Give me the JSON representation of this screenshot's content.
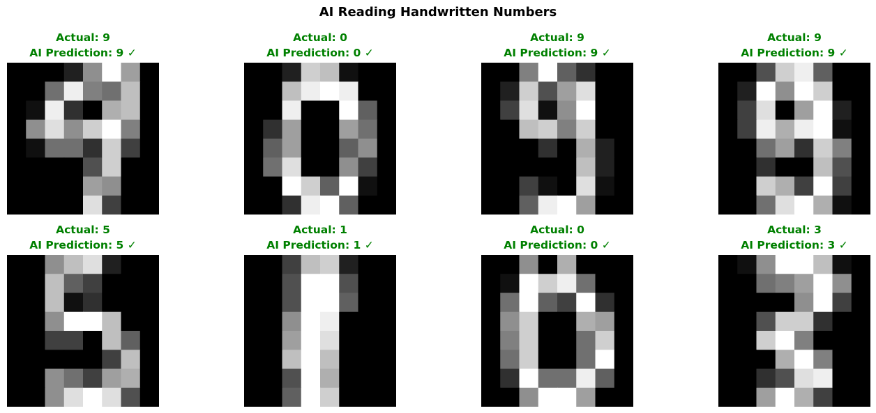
{
  "figure": {
    "title": "AI Reading Handwritten Numbers",
    "correct_color": "#008000"
  },
  "chart_data": {
    "type": "heatmap",
    "title": "AI Reading Handwritten Numbers",
    "colormap": "gray",
    "value_range": [
      0,
      16
    ],
    "grid_size": [
      8,
      8
    ],
    "axes_visible": false,
    "panels": [
      {
        "actual_label": "Actual: 9",
        "prediction_label": "AI Prediction: 9 ✓",
        "actual": 9,
        "predicted": 9,
        "correct": true,
        "pixels": [
          [
            0,
            0,
            0,
            2,
            9,
            16,
            10,
            0
          ],
          [
            0,
            0,
            7,
            15,
            8,
            7,
            12,
            0
          ],
          [
            0,
            1,
            15,
            3,
            0,
            11,
            12,
            0
          ],
          [
            0,
            9,
            14,
            9,
            13,
            16,
            8,
            0
          ],
          [
            0,
            1,
            7,
            7,
            3,
            13,
            4,
            0
          ],
          [
            0,
            0,
            0,
            0,
            5,
            13,
            0,
            0
          ],
          [
            0,
            0,
            0,
            0,
            10,
            9,
            0,
            0
          ],
          [
            0,
            0,
            0,
            0,
            14,
            4,
            0,
            0
          ]
        ]
      },
      {
        "actual_label": "Actual: 0",
        "prediction_label": "AI Prediction: 0 ✓",
        "actual": 0,
        "predicted": 0,
        "correct": true,
        "pixels": [
          [
            0,
            0,
            2,
            13,
            12,
            1,
            0,
            0
          ],
          [
            0,
            0,
            12,
            15,
            16,
            15,
            0,
            0
          ],
          [
            0,
            0,
            15,
            0,
            0,
            16,
            6,
            0
          ],
          [
            0,
            3,
            10,
            0,
            0,
            10,
            7,
            0
          ],
          [
            0,
            6,
            10,
            0,
            0,
            6,
            9,
            0
          ],
          [
            0,
            7,
            14,
            0,
            0,
            9,
            4,
            0
          ],
          [
            0,
            0,
            16,
            13,
            6,
            16,
            1,
            0
          ],
          [
            0,
            0,
            3,
            15,
            16,
            6,
            0,
            0
          ]
        ]
      },
      {
        "actual_label": "Actual: 9",
        "prediction_label": "AI Prediction: 9 ✓",
        "actual": 9,
        "predicted": 9,
        "correct": true,
        "pixels": [
          [
            0,
            0,
            8,
            16,
            6,
            3,
            0,
            0
          ],
          [
            0,
            2,
            13,
            5,
            10,
            14,
            0,
            0
          ],
          [
            0,
            4,
            14,
            1,
            9,
            16,
            0,
            0
          ],
          [
            0,
            0,
            12,
            13,
            8,
            13,
            0,
            0
          ],
          [
            0,
            0,
            0,
            3,
            0,
            11,
            2,
            0
          ],
          [
            0,
            0,
            0,
            0,
            0,
            12,
            2,
            0
          ],
          [
            0,
            0,
            4,
            1,
            0,
            14,
            1,
            0
          ],
          [
            0,
            0,
            6,
            15,
            16,
            10,
            0,
            0
          ]
        ]
      },
      {
        "actual_label": "Actual: 9",
        "prediction_label": "AI Prediction: 9 ✓",
        "actual": 9,
        "predicted": 9,
        "correct": true,
        "pixels": [
          [
            0,
            0,
            5,
            13,
            15,
            6,
            0,
            0
          ],
          [
            0,
            2,
            16,
            9,
            16,
            13,
            0,
            0
          ],
          [
            0,
            4,
            14,
            0,
            10,
            16,
            2,
            0
          ],
          [
            0,
            4,
            15,
            11,
            15,
            16,
            1,
            0
          ],
          [
            0,
            0,
            7,
            10,
            3,
            13,
            8,
            0
          ],
          [
            0,
            0,
            3,
            0,
            0,
            12,
            5,
            0
          ],
          [
            0,
            0,
            13,
            11,
            4,
            16,
            4,
            0
          ],
          [
            0,
            0,
            7,
            14,
            16,
            11,
            1,
            0
          ]
        ]
      },
      {
        "actual_label": "Actual: 5",
        "prediction_label": "AI Prediction: 5 ✓",
        "actual": 5,
        "predicted": 5,
        "correct": true,
        "pixels": [
          [
            0,
            0,
            9,
            12,
            14,
            2,
            0,
            0
          ],
          [
            0,
            0,
            12,
            6,
            4,
            0,
            0,
            0
          ],
          [
            0,
            0,
            12,
            1,
            3,
            0,
            0,
            0
          ],
          [
            0,
            0,
            9,
            16,
            16,
            12,
            0,
            0
          ],
          [
            0,
            0,
            4,
            4,
            0,
            12,
            6,
            0
          ],
          [
            0,
            0,
            0,
            0,
            0,
            4,
            12,
            0
          ],
          [
            0,
            0,
            9,
            7,
            4,
            10,
            11,
            0
          ],
          [
            0,
            0,
            9,
            14,
            16,
            14,
            5,
            0
          ]
        ]
      },
      {
        "actual_label": "Actual: 1",
        "prediction_label": "AI Prediction: 1 ✓",
        "actual": 1,
        "predicted": 1,
        "correct": true,
        "pixels": [
          [
            0,
            0,
            4,
            12,
            13,
            2,
            0,
            0
          ],
          [
            0,
            0,
            5,
            16,
            16,
            5,
            0,
            0
          ],
          [
            0,
            0,
            5,
            16,
            16,
            6,
            0,
            0
          ],
          [
            0,
            0,
            9,
            16,
            15,
            0,
            0,
            0
          ],
          [
            0,
            0,
            10,
            16,
            14,
            0,
            0,
            0
          ],
          [
            0,
            0,
            12,
            16,
            12,
            0,
            0,
            0
          ],
          [
            0,
            0,
            5,
            16,
            11,
            0,
            0,
            0
          ],
          [
            0,
            0,
            6,
            16,
            13,
            0,
            0,
            0
          ]
        ]
      },
      {
        "actual_label": "Actual: 0",
        "prediction_label": "AI Prediction: 0 ✓",
        "actual": 0,
        "predicted": 0,
        "correct": true,
        "pixels": [
          [
            0,
            0,
            9,
            0,
            11,
            0,
            0,
            0
          ],
          [
            0,
            1,
            16,
            13,
            15,
            7,
            0,
            0
          ],
          [
            0,
            7,
            16,
            6,
            4,
            16,
            3,
            0
          ],
          [
            0,
            9,
            13,
            0,
            0,
            11,
            10,
            0
          ],
          [
            0,
            8,
            13,
            0,
            0,
            7,
            13,
            0
          ],
          [
            0,
            7,
            13,
            0,
            0,
            7,
            16,
            0
          ],
          [
            0,
            3,
            16,
            7,
            7,
            15,
            6,
            0
          ],
          [
            0,
            0,
            9,
            16,
            16,
            10,
            0,
            0
          ]
        ]
      },
      {
        "actual_label": "Actual: 3",
        "prediction_label": "AI Prediction: 3 ✓",
        "actual": 3,
        "predicted": 3,
        "correct": true,
        "pixels": [
          [
            0,
            1,
            9,
            16,
            16,
            12,
            1,
            0
          ],
          [
            0,
            0,
            7,
            8,
            10,
            16,
            9,
            0
          ],
          [
            0,
            0,
            0,
            0,
            9,
            16,
            4,
            0
          ],
          [
            0,
            0,
            5,
            13,
            13,
            3,
            0,
            0
          ],
          [
            0,
            0,
            13,
            16,
            8,
            0,
            0,
            0
          ],
          [
            0,
            0,
            0,
            11,
            16,
            8,
            0,
            0
          ],
          [
            0,
            0,
            3,
            5,
            14,
            15,
            0,
            0
          ],
          [
            0,
            0,
            10,
            16,
            11,
            4,
            0,
            0
          ]
        ]
      }
    ]
  }
}
